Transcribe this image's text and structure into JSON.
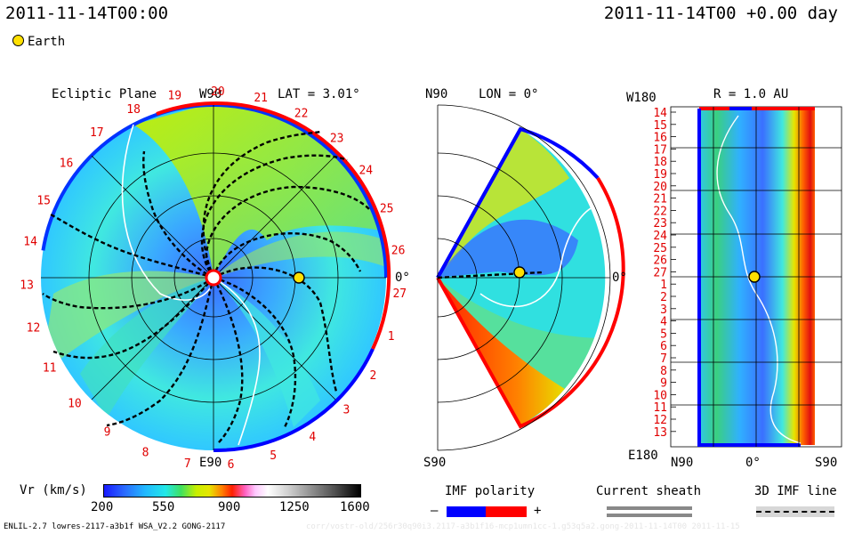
{
  "header": {
    "time_left": "2011-11-14T00:00",
    "time_right": "2011-11-14T00 +0.00 day"
  },
  "legend": {
    "earth_label": "Earth"
  },
  "colors": {
    "imf_negative": "#0000ff",
    "imf_positive": "#ff0000",
    "earth": "#ffe000"
  },
  "ecliptic": {
    "title": "Ecliptic Plane",
    "top_label": "W90",
    "bottom_label": "E90",
    "lat_label": "LAT = 3.01°",
    "zero_label": "0°",
    "carrington_numbers": [
      "19",
      "20",
      "21",
      "22",
      "23",
      "24",
      "25",
      "26",
      "27",
      "1",
      "2",
      "3",
      "4",
      "5",
      "6",
      "7",
      "8",
      "9",
      "10",
      "11",
      "12",
      "13",
      "14",
      "15",
      "16",
      "17",
      "18"
    ]
  },
  "meridional": {
    "top_label": "N90",
    "bottom_label": "S90",
    "lon_label": "LON = 0°",
    "zero_label": "0°"
  },
  "map": {
    "r_label": "R = 1.0 AU",
    "top_left_label": "W180",
    "bottom_left_label": "E180",
    "x_labels": [
      "N90",
      "0°",
      "S90"
    ],
    "rows": [
      "14",
      "15",
      "16",
      "17",
      "18",
      "19",
      "20",
      "21",
      "22",
      "23",
      "24",
      "25",
      "26",
      "27",
      "1",
      "2",
      "3",
      "4",
      "5",
      "6",
      "7",
      "8",
      "9",
      "10",
      "11",
      "12",
      "13"
    ]
  },
  "colorbar": {
    "label": "Vr (km/s)",
    "ticks": [
      "200",
      "550",
      "900",
      "1250",
      "1600"
    ]
  },
  "imf_polarity": {
    "title": "IMF polarity",
    "minus": "–",
    "plus": "+"
  },
  "current_sheath": {
    "title": "Current sheath"
  },
  "imf_line": {
    "title": "3D IMF line"
  },
  "footer": {
    "model": "ENLIL-2.7 lowres-2117-a3b1f WSA_V2.2 GONG-2117",
    "run": "corr/vostr-old/256r30q90i3.2117-a3b1f16-mcp1umn1cc-1.g53q5a2.gong-2011-11-14T00   2011-11-15"
  }
}
